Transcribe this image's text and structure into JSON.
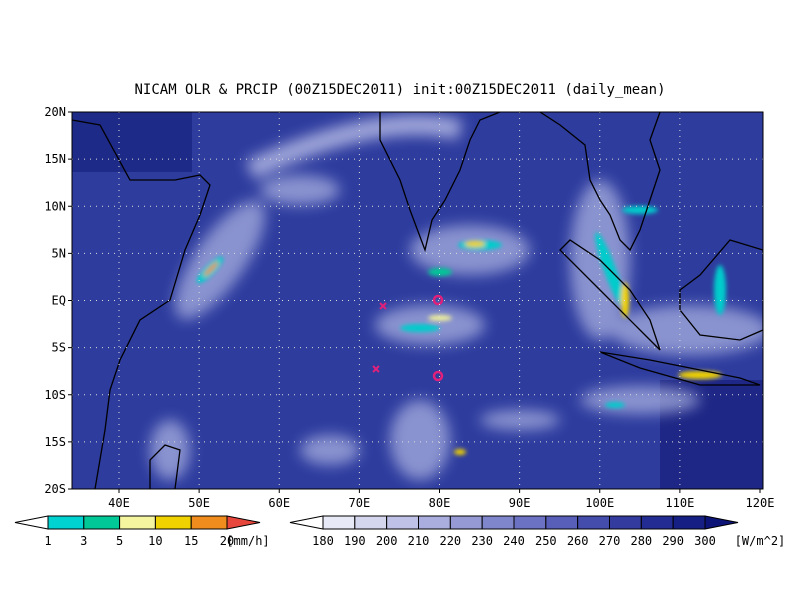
{
  "title": "NICAM OLR & PRCIP (00Z15DEC2011) init:00Z15DEC2011 (daily_mean)",
  "lat_labels": [
    "20N",
    "15N",
    "10N",
    "5N",
    "EQ",
    "5S",
    "10S",
    "15S",
    "20S"
  ],
  "lon_labels": [
    "40E",
    "50E",
    "60E",
    "70E",
    "80E",
    "90E",
    "100E",
    "110E",
    "120E"
  ],
  "precip_scale": {
    "labels": [
      1,
      3,
      5,
      10,
      15,
      20
    ],
    "unit": "[mm/h]"
  },
  "olr_scale": {
    "labels": [
      180,
      190,
      200,
      210,
      220,
      230,
      240,
      250,
      260,
      270,
      280,
      290,
      300
    ],
    "unit": "[W/m^2]"
  }
}
